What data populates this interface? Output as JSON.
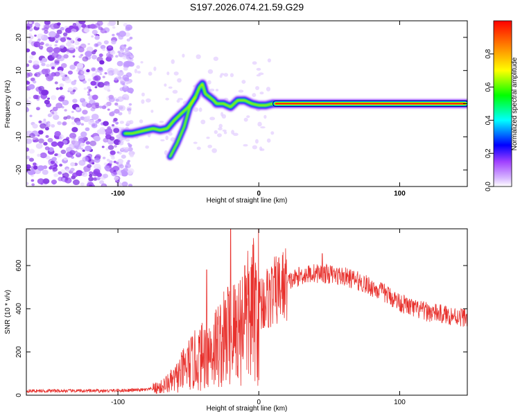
{
  "title": "S197.2026.074.21.59.G29",
  "chart_data": [
    {
      "type": "heatmap",
      "name": "spectrogram",
      "xlabel": "Height of straight line (km)",
      "ylabel": "Frequency (Hz)",
      "xlim": [
        -165,
        148
      ],
      "ylim": [
        -25,
        25
      ],
      "xticks": [
        -100,
        0,
        100
      ],
      "yticks": [
        -20,
        -10,
        0,
        10,
        20
      ],
      "colorbar": {
        "label": "Normalized spectral amplitude",
        "range": [
          0,
          1
        ],
        "ticks": [
          "0.0",
          "0.2",
          "0.4",
          "0.6",
          "0.8"
        ],
        "colors": [
          "#ffffff",
          "#a040ff",
          "#0000ff",
          "#00ffff",
          "#00ff00",
          "#ffff00",
          "#ff8000",
          "#ff0000"
        ]
      },
      "ridge": {
        "x": [
          -95,
          -90,
          -85,
          -80,
          -75,
          -70,
          -65,
          -60,
          -55,
          -50,
          -45,
          -42,
          -40,
          -38,
          -35,
          -32,
          -30,
          -25,
          -20,
          -15,
          -10,
          -5,
          0,
          5,
          10,
          15,
          50,
          100,
          148
        ],
        "y": [
          -9,
          -9,
          -8.5,
          -8,
          -7.5,
          -8,
          -7.5,
          -5,
          -3,
          -1,
          2,
          5,
          6,
          3,
          2,
          1,
          0,
          0,
          -1,
          1,
          1,
          0,
          -0.5,
          -0.5,
          0,
          0,
          0,
          0,
          0
        ]
      },
      "branch": {
        "x": [
          -63,
          -58,
          -53,
          -49,
          -45
        ],
        "y": [
          -16,
          -12,
          -7,
          -1,
          2
        ]
      }
    },
    {
      "type": "line",
      "name": "snr",
      "xlabel": "Height of straight line (km)",
      "ylabel": "SNR (10 * v/v)",
      "xlim": [
        -165,
        148
      ],
      "ylim": [
        0,
        770
      ],
      "xticks": [
        -100,
        0,
        100
      ],
      "yticks": [
        0,
        200,
        400,
        600
      ],
      "color": "#e8322e",
      "envelope": {
        "x": [
          -165,
          -110,
          -80,
          -70,
          -60,
          -50,
          -40,
          -30,
          -20,
          -10,
          0,
          10,
          20,
          30,
          40,
          50,
          60,
          70,
          80,
          90,
          100,
          110,
          120,
          130,
          140,
          148
        ],
        "y": [
          20,
          20,
          25,
          35,
          70,
          140,
          180,
          230,
          280,
          340,
          420,
          470,
          520,
          555,
          565,
          560,
          550,
          530,
          500,
          470,
          430,
          400,
          385,
          375,
          365,
          360
        ]
      },
      "spikes": [
        {
          "x": -20,
          "y": 770
        },
        {
          "x": -37,
          "y": 580
        },
        {
          "x": -22,
          "y": 500
        },
        {
          "x": -10,
          "y": 600
        },
        {
          "x": 45,
          "y": 655
        }
      ]
    }
  ]
}
